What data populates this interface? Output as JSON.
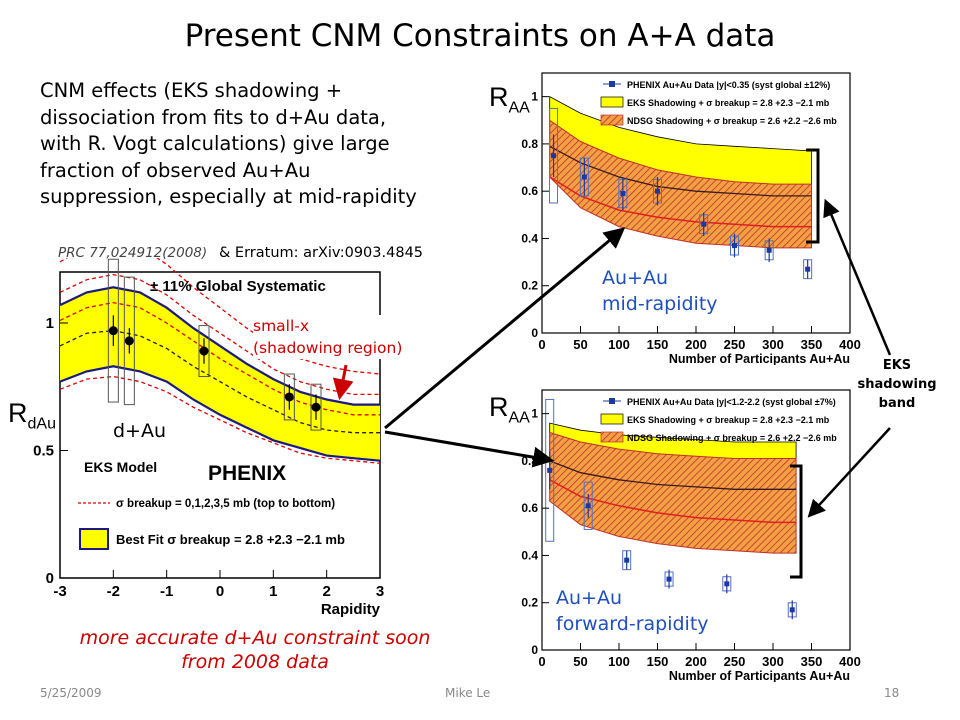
{
  "slide": {
    "title": "Present CNM Constraints on A+A data",
    "intro_lines": [
      "CNM effects (EKS shadowing +",
      "dissociation from fits to d+Au data,",
      "with R. Vogt calculations) give large",
      "fraction of observed Au+Au",
      "suppression, especially at mid-rapidity"
    ],
    "ref_left": "PRC 77,024912(2008)",
    "ref_right": "& Erratum: arXiv:0903.4845",
    "footnote_lines": [
      "more accurate d+Au  constraint soon",
      "from 2008 data"
    ],
    "date": "5/25/2009",
    "author": "Mike Le",
    "page": "18",
    "eks_band_label": [
      "EKS",
      "shadowing",
      "band"
    ],
    "colors": {
      "accent_red": "#cc0000",
      "blue": "#1f4fbf",
      "band_yellow": "#ffff00",
      "band_orange": "#e88a10"
    }
  },
  "chart_data": [
    {
      "type": "line",
      "panel": "dAu",
      "ylabel_main": "R",
      "ylabel_sub": "dAu",
      "xlabel": "Rapidity",
      "xlim": [
        -3,
        3
      ],
      "ylim": [
        0,
        1.2
      ],
      "x_ticks": [
        "-3",
        "-2",
        "-1",
        "0",
        "1",
        "2",
        "3"
      ],
      "y_ticks": [
        {
          "v": 0,
          "label": "0"
        },
        {
          "v": 0.5,
          "label": "0.5"
        },
        {
          "v": 1,
          "label": "1"
        }
      ],
      "global_systematic": "± 11% Global Systematic",
      "model_label": "EKS Model",
      "logo": "PHENIX",
      "legend_dashed": "σ breakup = 0,1,2,3,5 mb (top to bottom)",
      "legend_band": "Best Fit σ breakup = 2.8 +2.3 −2.1 mb",
      "annotation_small_x": [
        "small-x",
        "(shadowing region)"
      ],
      "annotation_dAu": "d+Au",
      "curve_x": [
        -3,
        -2.5,
        -2,
        -1.5,
        -1,
        -0.5,
        0,
        0.5,
        1,
        1.5,
        2,
        2.5,
        3
      ],
      "band_upper": [
        1.07,
        1.12,
        1.14,
        1.12,
        1.06,
        0.98,
        0.91,
        0.84,
        0.78,
        0.73,
        0.7,
        0.68,
        0.68
      ],
      "band_lower": [
        0.77,
        0.81,
        0.83,
        0.81,
        0.77,
        0.7,
        0.64,
        0.59,
        0.54,
        0.51,
        0.48,
        0.47,
        0.46
      ],
      "best_fit": [
        0.92,
        0.97,
        0.98,
        0.96,
        0.91,
        0.84,
        0.77,
        0.71,
        0.66,
        0.62,
        0.59,
        0.57,
        0.57
      ],
      "dashed_curves": [
        [
          1.24,
          1.3,
          1.32,
          1.3,
          1.23,
          1.14,
          1.06,
          0.98,
          0.91,
          0.86,
          0.83,
          0.81,
          0.8
        ],
        [
          1.12,
          1.17,
          1.19,
          1.17,
          1.11,
          1.03,
          0.96,
          0.89,
          0.82,
          0.77,
          0.74,
          0.72,
          0.72
        ],
        [
          1.01,
          1.06,
          1.08,
          1.06,
          1.0,
          0.93,
          0.86,
          0.8,
          0.74,
          0.69,
          0.66,
          0.64,
          0.64
        ],
        [
          0.91,
          0.96,
          0.97,
          0.95,
          0.9,
          0.83,
          0.77,
          0.71,
          0.66,
          0.61,
          0.58,
          0.57,
          0.57
        ],
        [
          0.74,
          0.78,
          0.79,
          0.77,
          0.73,
          0.67,
          0.62,
          0.57,
          0.53,
          0.49,
          0.47,
          0.46,
          0.45
        ]
      ],
      "points": [
        {
          "x": -2.0,
          "y": 0.97,
          "err": 0.06,
          "sys": 0.28
        },
        {
          "x": -1.7,
          "y": 0.93,
          "err": 0.05,
          "sys": 0.25
        },
        {
          "x": -0.3,
          "y": 0.89,
          "err": 0.05,
          "sys": 0.1
        },
        {
          "x": 1.3,
          "y": 0.71,
          "err": 0.05,
          "sys": 0.09
        },
        {
          "x": 1.8,
          "y": 0.67,
          "err": 0.05,
          "sys": 0.09
        }
      ]
    },
    {
      "type": "line",
      "panel": "AuAu-mid",
      "ylabel_main": "R",
      "ylabel_sub": "AA",
      "xlabel": "Number of Participants Au+Au",
      "xlim": [
        0,
        400
      ],
      "ylim": [
        0,
        1.1
      ],
      "x_ticks": [
        "0",
        "50",
        "100",
        "150",
        "200",
        "250",
        "300",
        "350",
        "400"
      ],
      "y_ticks": [
        {
          "v": 0,
          "label": "0"
        },
        {
          "v": 0.2,
          "label": "0.2"
        },
        {
          "v": 0.4,
          "label": "0.4"
        },
        {
          "v": 0.6,
          "label": "0.6"
        },
        {
          "v": 0.8,
          "label": "0.8"
        },
        {
          "v": 1,
          "label": "1"
        }
      ],
      "legend": [
        "PHENIX Au+Au Data |y|<0.35 (syst global ±12%)",
        "EKS Shadowing + σ breakup = 2.8 +2.3 −2.1 mb",
        "NDSG Shadowing + σ breakup = 2.6 +2.2 −2.6 mb"
      ],
      "panel_label": [
        "Au+Au",
        "mid-rapidity"
      ],
      "curve_x": [
        10,
        50,
        100,
        150,
        200,
        250,
        300,
        350
      ],
      "eks_upper": [
        1.0,
        0.93,
        0.87,
        0.83,
        0.8,
        0.79,
        0.78,
        0.77
      ],
      "eks_lower": [
        0.84,
        0.76,
        0.7,
        0.66,
        0.63,
        0.62,
        0.61,
        0.61
      ],
      "ndsg_upper": [
        0.9,
        0.81,
        0.74,
        0.69,
        0.66,
        0.64,
        0.63,
        0.63
      ],
      "ndsg_lower": [
        0.66,
        0.53,
        0.45,
        0.41,
        0.38,
        0.37,
        0.36,
        0.36
      ],
      "center_line": [
        0.79,
        0.72,
        0.66,
        0.62,
        0.6,
        0.59,
        0.58,
        0.58
      ],
      "lower_line": [
        0.66,
        0.58,
        0.52,
        0.49,
        0.47,
        0.46,
        0.45,
        0.45
      ],
      "points": [
        {
          "x": 15,
          "y": 0.75,
          "err": 0.09,
          "sys": 0.2
        },
        {
          "x": 55,
          "y": 0.66,
          "err": 0.08,
          "sys": 0.08
        },
        {
          "x": 105,
          "y": 0.59,
          "err": 0.07,
          "sys": 0.06
        },
        {
          "x": 150,
          "y": 0.6,
          "err": 0.06,
          "sys": 0.05
        },
        {
          "x": 210,
          "y": 0.46,
          "err": 0.05,
          "sys": 0.04
        },
        {
          "x": 250,
          "y": 0.37,
          "err": 0.05,
          "sys": 0.04
        },
        {
          "x": 295,
          "y": 0.35,
          "err": 0.05,
          "sys": 0.04
        },
        {
          "x": 345,
          "y": 0.27,
          "err": 0.04,
          "sys": 0.04
        }
      ]
    },
    {
      "type": "line",
      "panel": "AuAu-forward",
      "ylabel_main": "R",
      "ylabel_sub": "AA",
      "xlabel": "Number of Participants Au+Au",
      "xlim": [
        0,
        400
      ],
      "ylim": [
        0,
        1.1
      ],
      "x_ticks": [
        "0",
        "50",
        "100",
        "150",
        "200",
        "250",
        "300",
        "350",
        "400"
      ],
      "y_ticks": [
        {
          "v": 0,
          "label": "0"
        },
        {
          "v": 0.2,
          "label": "0.2"
        },
        {
          "v": 0.4,
          "label": "0.4"
        },
        {
          "v": 0.6,
          "label": "0.6"
        },
        {
          "v": 0.8,
          "label": "0.8"
        },
        {
          "v": 1,
          "label": "1"
        }
      ],
      "legend": [
        "PHENIX Au+Au Data |y|<1.2-2.2 (syst global ±7%)",
        "EKS Shadowing + σ breakup = 2.8 +2.3 −2.1 mb",
        "NDSG Shadowing + σ breakup = 2.6 +2.2 −2.6 mb"
      ],
      "panel_label": [
        "Au+Au",
        "forward-rapidity"
      ],
      "curve_x": [
        10,
        50,
        100,
        150,
        200,
        250,
        300,
        330
      ],
      "eks_upper": [
        0.96,
        0.93,
        0.91,
        0.9,
        0.89,
        0.88,
        0.88,
        0.88
      ],
      "eks_lower": [
        0.78,
        0.71,
        0.67,
        0.64,
        0.62,
        0.61,
        0.6,
        0.6
      ],
      "ndsg_upper": [
        0.92,
        0.88,
        0.85,
        0.83,
        0.82,
        0.81,
        0.81,
        0.81
      ],
      "ndsg_lower": [
        0.63,
        0.53,
        0.48,
        0.45,
        0.43,
        0.42,
        0.41,
        0.41
      ],
      "center_line": [
        0.8,
        0.75,
        0.72,
        0.7,
        0.69,
        0.68,
        0.68,
        0.68
      ],
      "lower_line": [
        0.72,
        0.65,
        0.61,
        0.58,
        0.56,
        0.55,
        0.54,
        0.54
      ],
      "points": [
        {
          "x": 10,
          "y": 0.76,
          "err": 0.08,
          "sys": 0.3
        },
        {
          "x": 60,
          "y": 0.61,
          "err": 0.05,
          "sys": 0.1
        },
        {
          "x": 110,
          "y": 0.38,
          "err": 0.04,
          "sys": 0.04
        },
        {
          "x": 165,
          "y": 0.3,
          "err": 0.04,
          "sys": 0.03
        },
        {
          "x": 240,
          "y": 0.28,
          "err": 0.04,
          "sys": 0.03
        },
        {
          "x": 325,
          "y": 0.17,
          "err": 0.04,
          "sys": 0.03
        }
      ]
    }
  ]
}
